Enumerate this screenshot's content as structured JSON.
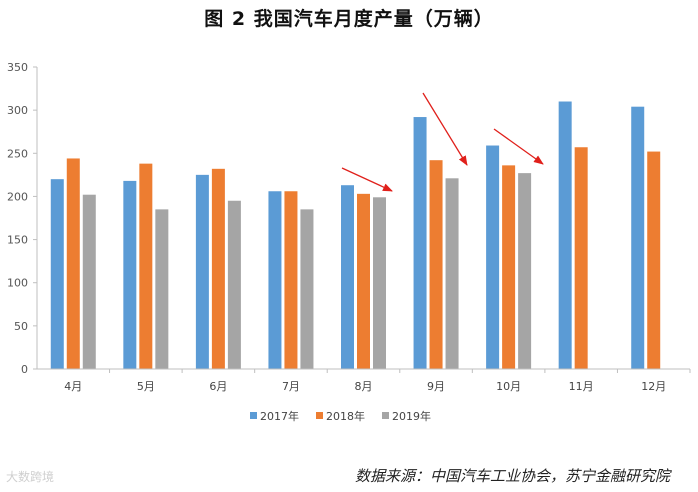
{
  "title": "图 2    我国汽车月度产量（万辆）",
  "source": "数据来源：中国汽车工业协会，苏宁金融研究院",
  "watermark": "大数跨境",
  "colors": {
    "s2017": "#5b9bd5",
    "s2018": "#ed7d31",
    "s2019": "#a5a5a5",
    "arrow": "#e0201b",
    "axis": "#bfbfbf"
  },
  "chart_data": {
    "type": "bar",
    "title": "图 2    我国汽车月度产量（万辆）",
    "xlabel": "",
    "ylabel": "",
    "ylim": [
      0,
      350
    ],
    "yticks": [
      0,
      50,
      100,
      150,
      200,
      250,
      300,
      350
    ],
    "grid": false,
    "legend_position": "bottom",
    "categories": [
      "4月",
      "5月",
      "6月",
      "7月",
      "8月",
      "9月",
      "10月",
      "11月",
      "12月"
    ],
    "series": [
      {
        "name": "2017年",
        "color": "#5b9bd5",
        "values": [
          220,
          218,
          225,
          206,
          213,
          292,
          259,
          310,
          304
        ]
      },
      {
        "name": "2018年",
        "color": "#ed7d31",
        "values": [
          244,
          238,
          232,
          206,
          203,
          242,
          236,
          257,
          252
        ]
      },
      {
        "name": "2019年",
        "color": "#a5a5a5",
        "values": [
          202,
          185,
          195,
          185,
          199,
          221,
          227,
          null,
          null
        ]
      }
    ]
  }
}
